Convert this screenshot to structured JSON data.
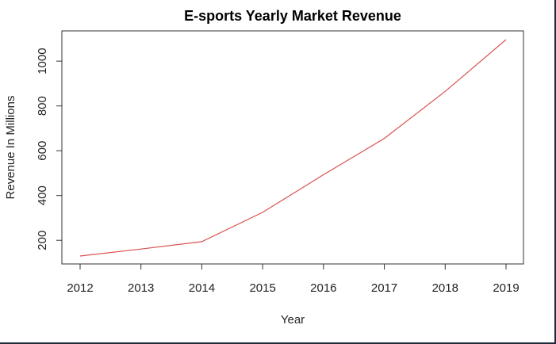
{
  "chart_data": {
    "type": "line",
    "title": "E-sports Yearly Market Revenue",
    "xlabel": "Year",
    "ylabel": "Revenue In Millions",
    "x": [
      2012,
      2013,
      2014,
      2015,
      2016,
      2017,
      2018,
      2019
    ],
    "xticks": [
      "2012",
      "2013",
      "2014",
      "2015",
      "2016",
      "2017",
      "2018",
      "2019"
    ],
    "yticks": [
      "200",
      "400",
      "600",
      "800",
      "1000"
    ],
    "ytick_values": [
      200,
      400,
      600,
      800,
      1000
    ],
    "series": [
      {
        "values": [
          130,
          161,
          194,
          325,
          493,
          655,
          865,
          1096
        ],
        "color": "#d9534f"
      }
    ],
    "xlim": [
      2012,
      2019
    ],
    "ylim": [
      130,
      1096
    ],
    "grid": false,
    "legend": "none"
  }
}
